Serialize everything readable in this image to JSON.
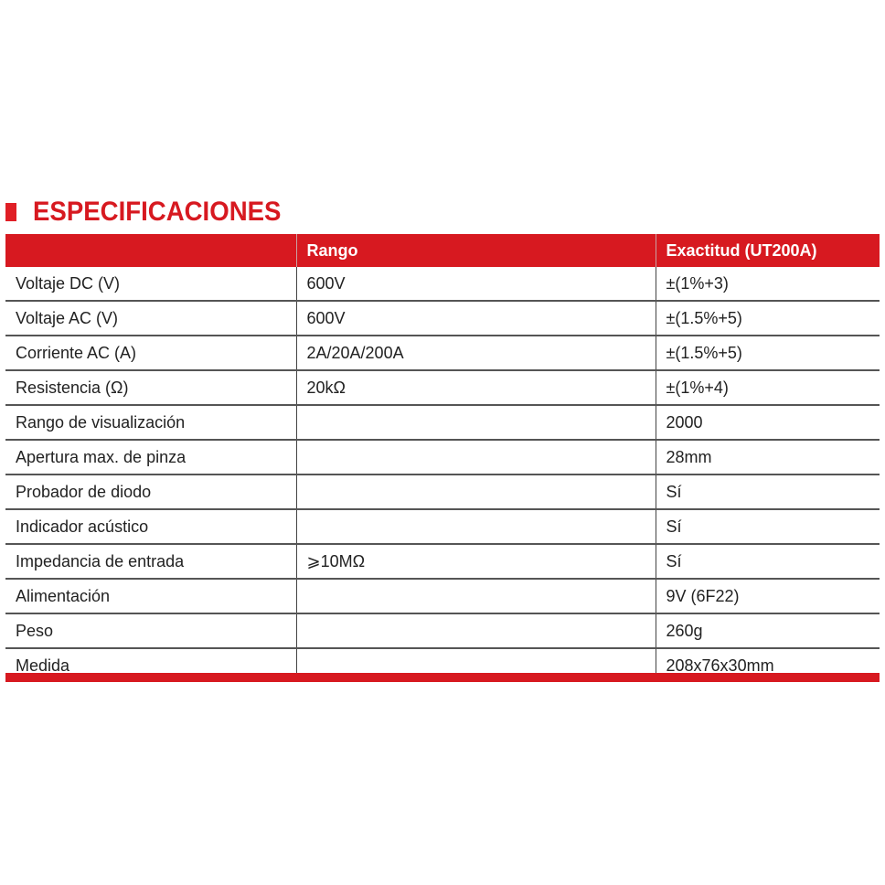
{
  "title": "ESPECIFICACIONES",
  "colors": {
    "accent": "#d71920"
  },
  "table": {
    "headers": [
      "",
      "Rango",
      "Exactitud  (UT200A)"
    ],
    "rows": [
      [
        "Voltaje DC (V)",
        "600V",
        "±(1%+3)"
      ],
      [
        "Voltaje AC (V)",
        "600V",
        "±(1.5%+5)"
      ],
      [
        "Corriente AC (A)",
        "2A/20A/200A",
        "±(1.5%+5)"
      ],
      [
        "Resistencia (Ω)",
        "20kΩ",
        "±(1%+4)"
      ],
      [
        "Rango de visualización",
        "",
        "2000"
      ],
      [
        "Apertura max. de pinza",
        "",
        "28mm"
      ],
      [
        "Probador de diodo",
        "",
        "Sí"
      ],
      [
        "Indicador acústico",
        "",
        "Sí"
      ],
      [
        "Impedancia de entrada",
        "⩾10MΩ",
        "Sí"
      ],
      [
        "Alimentación",
        "",
        "9V (6F22)"
      ],
      [
        "Peso",
        "",
        "260g"
      ],
      [
        "Medida",
        "",
        "208x76x30mm"
      ]
    ]
  }
}
